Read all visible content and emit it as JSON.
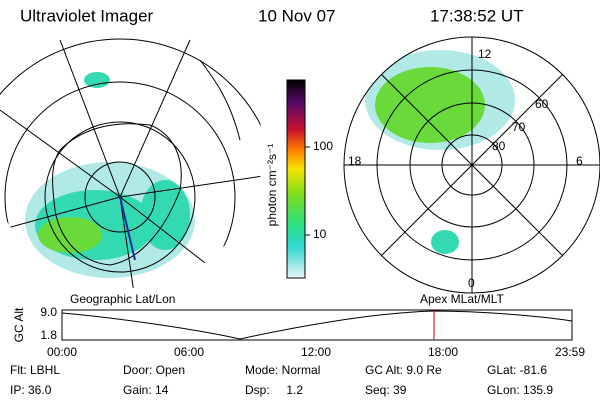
{
  "header": {
    "title": "Ultraviolet Imager",
    "date": "10 Nov 07",
    "time": "17:38:52 UT"
  },
  "geo_map": {
    "label": "Geographic Lat/Lon"
  },
  "colorbar": {
    "label": "photon cm⁻²s⁻¹",
    "ticks": [
      "100",
      "10"
    ]
  },
  "polar_map": {
    "label": "Apex MLat/MLT",
    "lat_labels": [
      "60",
      "70",
      "80"
    ],
    "mlt_labels": [
      "12",
      "18",
      "6",
      "0"
    ]
  },
  "altitude_plot": {
    "ylabel": "GC Alt",
    "yticks": [
      "9.0",
      "1.8"
    ],
    "xticks": [
      "00:00",
      "06:00",
      "12:00",
      "18:00",
      "23:59"
    ]
  },
  "info": {
    "rows": [
      [
        "Flt: LBHL",
        "Door: Open",
        "Mode: Normal",
        "GC Alt: 9.0 Re",
        "GLat: -81.6"
      ],
      [
        "IP: 36.0",
        "Gain: 14",
        "Dsp:     1.2",
        "Seq: 39",
        "GLon: 135.9"
      ]
    ]
  }
}
